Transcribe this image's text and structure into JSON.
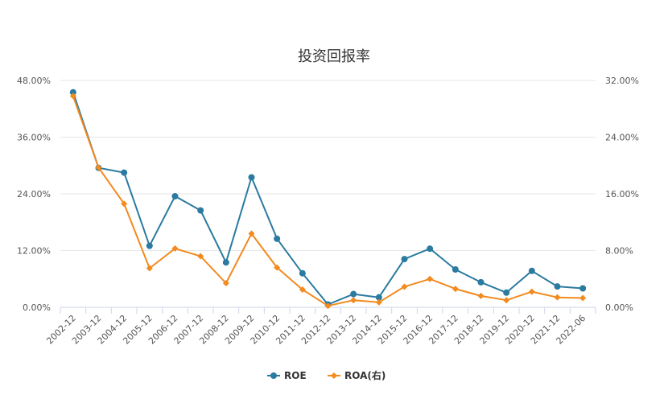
{
  "chart_data": {
    "type": "line",
    "title": "投资回报率",
    "categories": [
      "2002-12",
      "2003-12",
      "2004-12",
      "2005-12",
      "2006-12",
      "2007-12",
      "2008-12",
      "2009-12",
      "2010-12",
      "2011-12",
      "2012-12",
      "2013-12",
      "2014-12",
      "2015-12",
      "2016-12",
      "2017-12",
      "2018-12",
      "2019-12",
      "2020-12",
      "2021-12",
      "2022-06"
    ],
    "y_left": {
      "ticks": [
        "0.00%",
        "12.00%",
        "24.00%",
        "36.00%",
        "48.00%"
      ],
      "range": [
        0,
        48
      ]
    },
    "y_right": {
      "ticks": [
        "0.00%",
        "8.00%",
        "16.00%",
        "24.00%",
        "32.00%"
      ],
      "range": [
        0,
        32
      ]
    },
    "grid": true,
    "legend": "bottom-center",
    "series": [
      {
        "name": "ROE",
        "axis": "left",
        "color": "#2b7aa0",
        "marker": "circle",
        "values": [
          45.5,
          29.5,
          28.5,
          13.0,
          23.5,
          20.5,
          9.5,
          27.5,
          14.5,
          7.2,
          0.6,
          2.8,
          2.1,
          10.2,
          12.4,
          8.0,
          5.3,
          3.1,
          7.7,
          4.4,
          4.0
        ]
      },
      {
        "name": "ROA(右)",
        "axis": "right",
        "color": "#f28a1e",
        "marker": "diamond",
        "values": [
          29.8,
          19.7,
          14.6,
          5.5,
          8.3,
          7.2,
          3.4,
          10.4,
          5.6,
          2.5,
          0.2,
          1.0,
          0.7,
          2.9,
          4.0,
          2.6,
          1.6,
          1.0,
          2.2,
          1.4,
          1.3
        ]
      }
    ]
  }
}
